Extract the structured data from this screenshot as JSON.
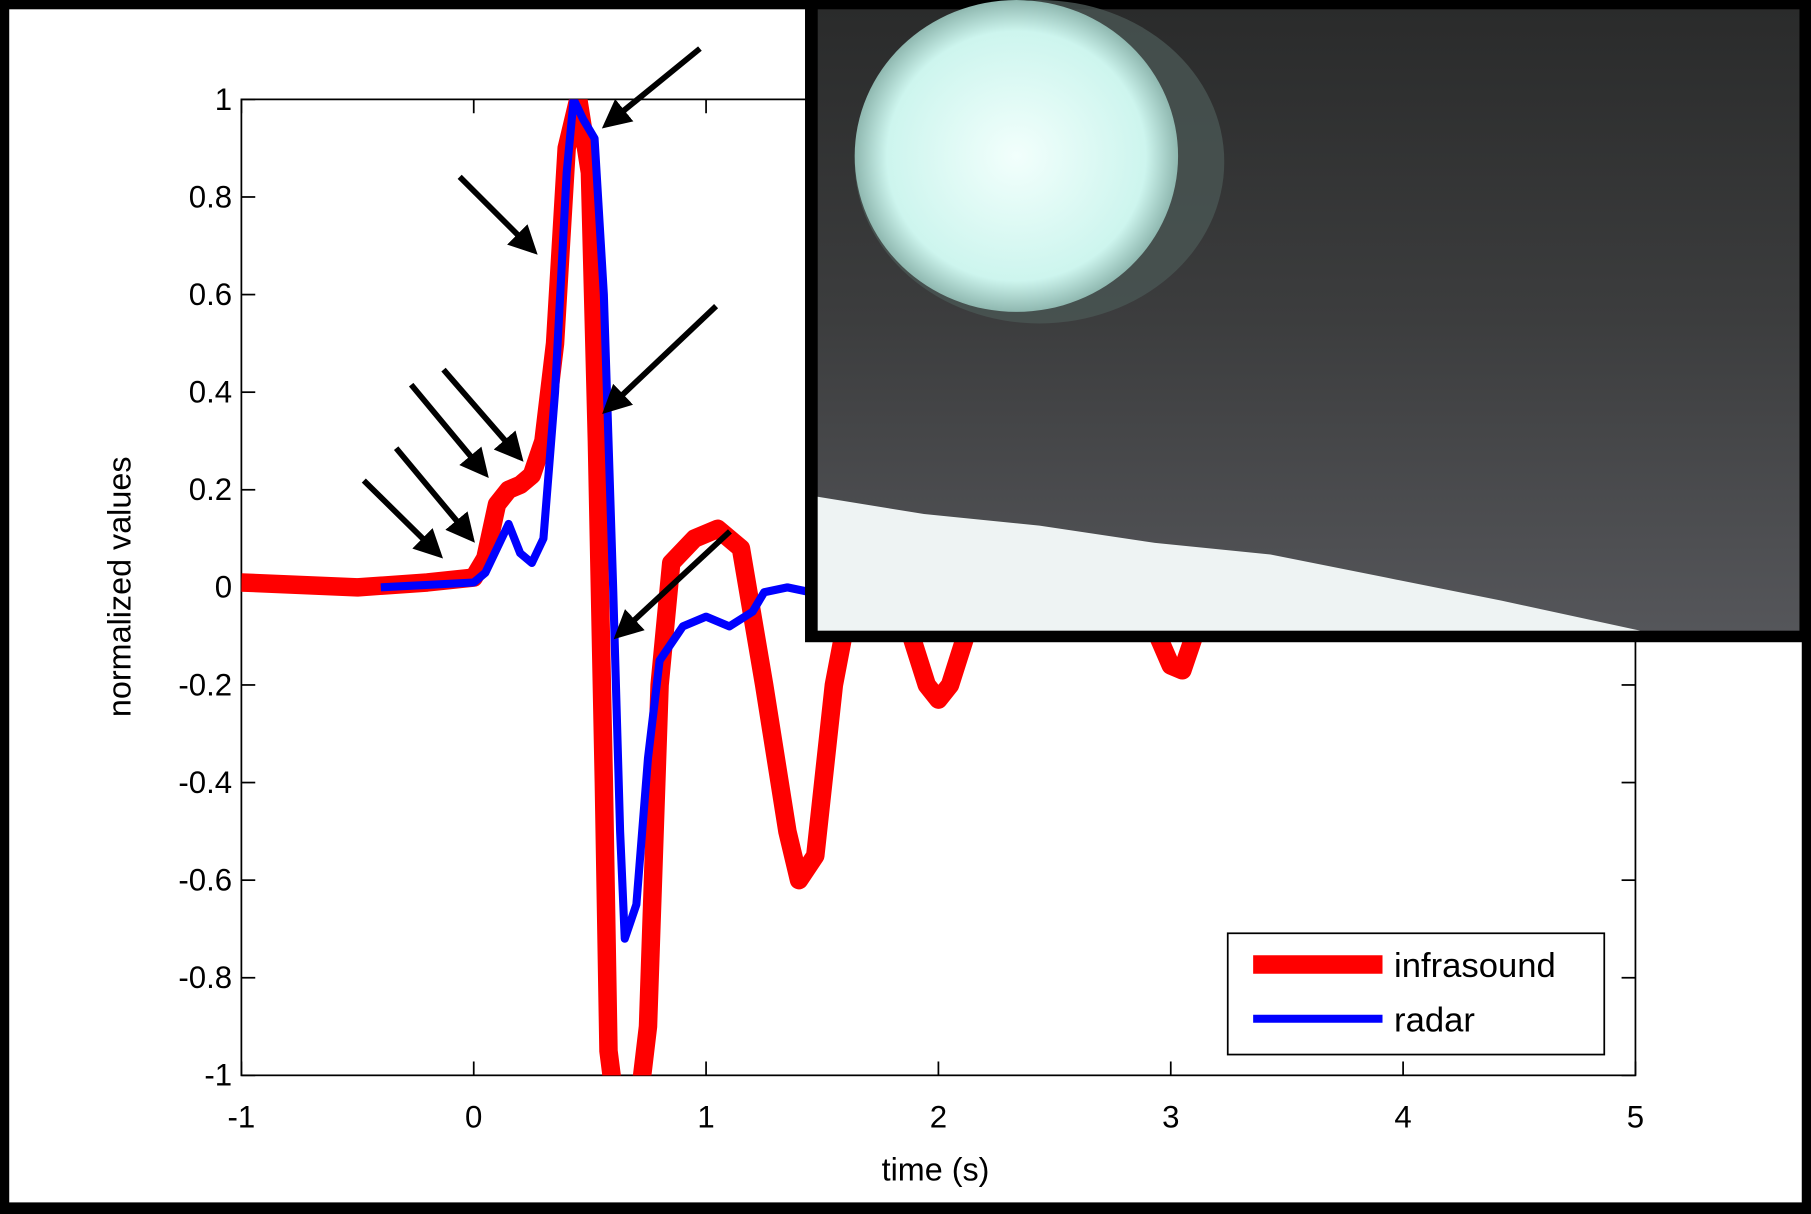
{
  "chart_data": {
    "type": "line",
    "xlabel": "time (s)",
    "ylabel": "normalized values",
    "xlim": [
      -1,
      5
    ],
    "ylim": [
      -1,
      1
    ],
    "xticks": [
      -1,
      0,
      1,
      2,
      3,
      4,
      5
    ],
    "yticks": [
      -1,
      -0.8,
      -0.6,
      -0.4,
      -0.2,
      0,
      0.2,
      0.4,
      0.6,
      0.8,
      1
    ],
    "legend": "lower right",
    "series": [
      {
        "name": "infrasound",
        "color": "#ff0000",
        "x": [
          -1,
          -0.5,
          -0.2,
          0,
          0.05,
          0.1,
          0.15,
          0.2,
          0.25,
          0.3,
          0.35,
          0.4,
          0.45,
          0.5,
          0.53,
          0.56,
          0.58,
          0.62,
          0.7,
          0.75,
          0.8,
          0.85,
          0.95,
          1.05,
          1.15,
          1.25,
          1.35,
          1.4,
          1.47,
          1.55,
          1.65,
          1.75,
          1.85,
          1.95,
          2.0,
          2.05,
          2.15,
          2.3,
          2.6,
          2.9,
          3.0,
          3.05,
          3.1,
          3.15
        ],
        "values": [
          0.01,
          0.0,
          0.01,
          0.02,
          0.06,
          0.17,
          0.2,
          0.21,
          0.23,
          0.3,
          0.5,
          0.9,
          1.0,
          0.85,
          0.3,
          -0.4,
          -0.95,
          -1.1,
          -1.1,
          -0.9,
          -0.2,
          0.05,
          0.1,
          0.12,
          0.08,
          -0.2,
          -0.5,
          -0.6,
          -0.55,
          -0.2,
          0.05,
          0.05,
          -0.05,
          -0.2,
          -0.23,
          -0.2,
          -0.05,
          0.02,
          0,
          -0.05,
          -0.16,
          -0.17,
          -0.1,
          0
        ]
      },
      {
        "name": "radar",
        "color": "#0000ff",
        "x": [
          -0.4,
          0,
          0.05,
          0.1,
          0.15,
          0.2,
          0.25,
          0.3,
          0.35,
          0.4,
          0.43,
          0.47,
          0.52,
          0.56,
          0.6,
          0.63,
          0.65,
          0.7,
          0.75,
          0.8,
          0.9,
          1.0,
          1.1,
          1.2,
          1.25,
          1.35,
          1.45
        ],
        "values": [
          0,
          0.01,
          0.03,
          0.08,
          0.13,
          0.07,
          0.05,
          0.1,
          0.4,
          0.85,
          1.0,
          0.96,
          0.92,
          0.6,
          0.0,
          -0.5,
          -0.72,
          -0.65,
          -0.35,
          -0.15,
          -0.08,
          -0.06,
          -0.08,
          -0.05,
          -0.01,
          0.0,
          -0.01
        ]
      }
    ]
  }
}
